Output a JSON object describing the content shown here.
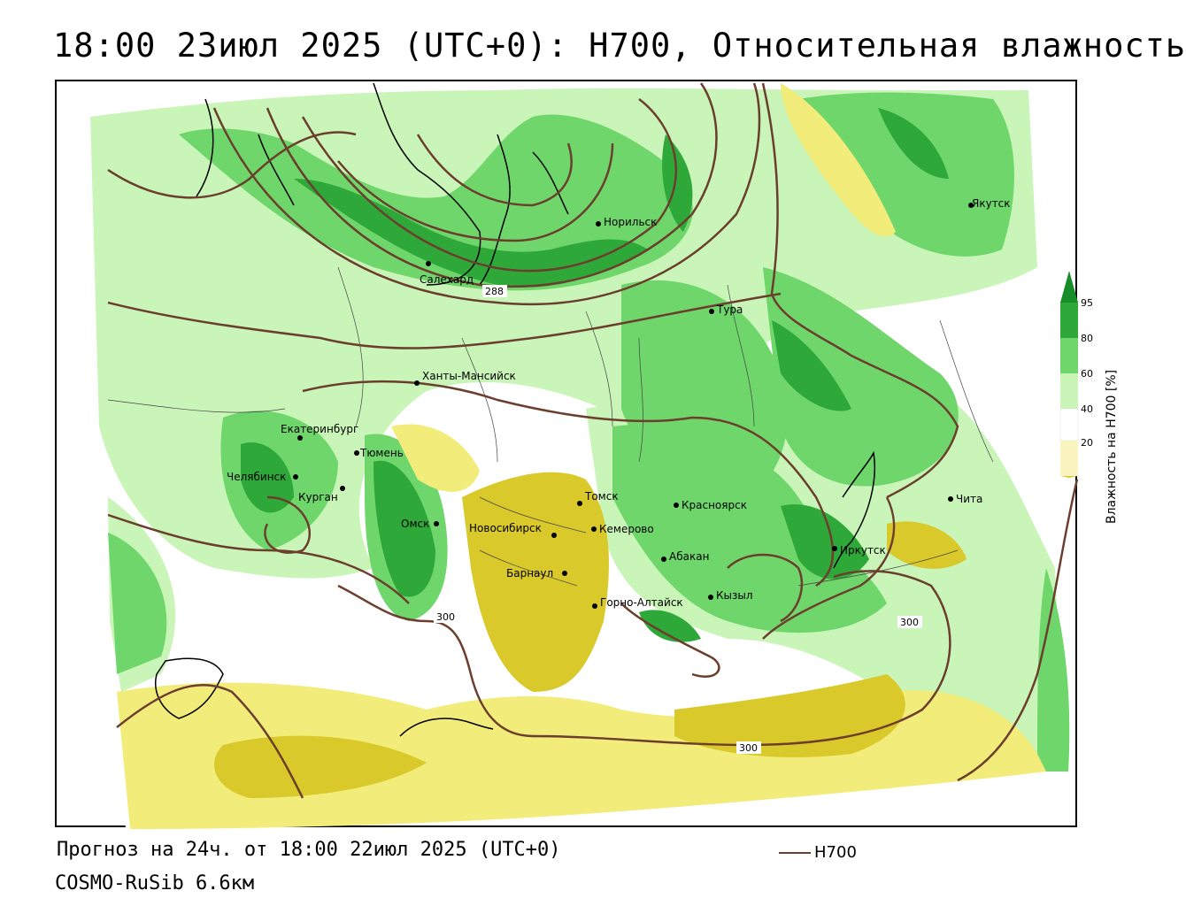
{
  "title": "18:00 23июл 2025 (UTC+0): H700, Относительная влажность",
  "footer": {
    "forecast": "Прогноз на 24ч. от 18:00 22июл 2025 (UTC+0)",
    "model": "COSMO-RuSib 6.6км"
  },
  "legend": {
    "line_label": "H700",
    "line_color": "#6b3e2e",
    "colorbar_title": "Влажность на H700 [%]",
    "ticks": [
      "95",
      "80",
      "60",
      "40",
      "20"
    ],
    "colors": {
      "dry_dark": "#d9c92a",
      "dry": "#f2ec7a",
      "dry_light": "#faf5c0",
      "neutral": "#ffffff",
      "moist_light": "#c9f5b8",
      "moist": "#6ed66a",
      "moist_dark": "#2fa83a",
      "very_moist": "#168c2a"
    }
  },
  "contour_labels": [
    "288",
    "300",
    "300",
    "300"
  ],
  "cities": [
    {
      "name": "Якутск"
    },
    {
      "name": "Норильск"
    },
    {
      "name": "Салехард"
    },
    {
      "name": "Тура"
    },
    {
      "name": "Ханты-Мансийск"
    },
    {
      "name": "Екатеринбург"
    },
    {
      "name": "Тюмень"
    },
    {
      "name": "Челябинск"
    },
    {
      "name": "Курган"
    },
    {
      "name": "Омск"
    },
    {
      "name": "Новосибирск"
    },
    {
      "name": "Томск"
    },
    {
      "name": "Кемерово"
    },
    {
      "name": "Красноярск"
    },
    {
      "name": "Абакан"
    },
    {
      "name": "Барнаул"
    },
    {
      "name": "Горно-Алтайск"
    },
    {
      "name": "Кызыл"
    },
    {
      "name": "Иркутск"
    },
    {
      "name": "Чита"
    }
  ]
}
